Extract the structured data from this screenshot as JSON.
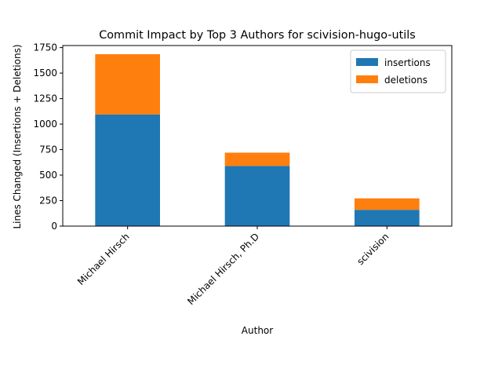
{
  "chart_data": {
    "type": "bar",
    "stacked": true,
    "title": "Commit Impact by Top 3 Authors for scivision-hugo-utils",
    "xlabel": "Author",
    "ylabel": "Lines Changed (Insertions + Deletions)",
    "categories": [
      "Michael Hirsch",
      "Michael Hirsch, Ph.D",
      "scivision"
    ],
    "series": [
      {
        "name": "insertions",
        "color": "#1f77b4",
        "values": [
          1095,
          590,
          160
        ]
      },
      {
        "name": "deletions",
        "color": "#ff7f0e",
        "values": [
          590,
          130,
          112
        ]
      }
    ],
    "ylim": [
      0,
      1770
    ],
    "yticks": [
      0,
      250,
      500,
      750,
      1000,
      1250,
      1500,
      1750
    ],
    "grid": false,
    "legend_position": "top-right"
  }
}
